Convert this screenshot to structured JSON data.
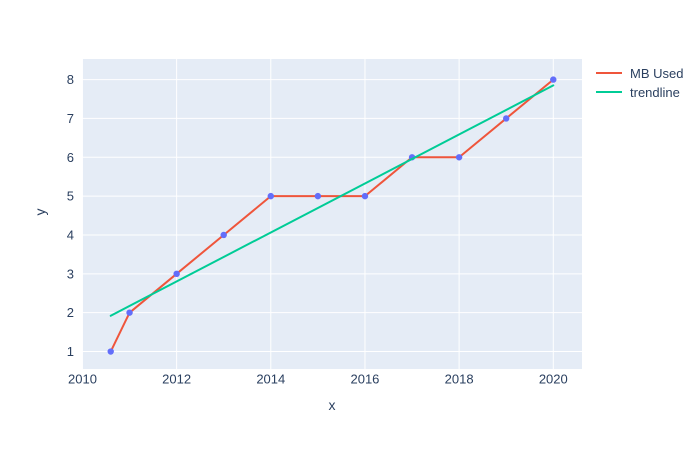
{
  "chart_data": {
    "type": "line",
    "title": "",
    "xlabel": "x",
    "ylabel": "y",
    "x_ticks": [
      2010,
      2012,
      2014,
      2016,
      2018,
      2020
    ],
    "y_ticks": [
      1,
      2,
      3,
      4,
      5,
      6,
      7,
      8
    ],
    "x_range": [
      2009.99,
      2020.61
    ],
    "y_range": [
      0.55,
      8.53
    ],
    "grid": true,
    "legend_position": "top-right",
    "series": [
      {
        "name": "MB Used",
        "mode": "lines+markers",
        "color": "#EF553B",
        "marker_color": "#636EFA",
        "x": [
          2010.6,
          2011,
          2012,
          2013,
          2014,
          2015,
          2016,
          2017,
          2018,
          2019,
          2020
        ],
        "y": [
          1,
          2,
          3,
          4,
          5,
          5,
          5,
          6,
          6,
          7,
          8
        ]
      },
      {
        "name": "trendline",
        "mode": "lines",
        "color": "#00CC96",
        "x": [
          2010.6,
          2020
        ],
        "y": [
          1.92,
          7.85
        ]
      }
    ],
    "colors": {
      "plot_background": "#E5ECF6",
      "paper_background": "#FFFFFF",
      "gridline": "#FFFFFF",
      "text": "#2A3F5F"
    }
  }
}
